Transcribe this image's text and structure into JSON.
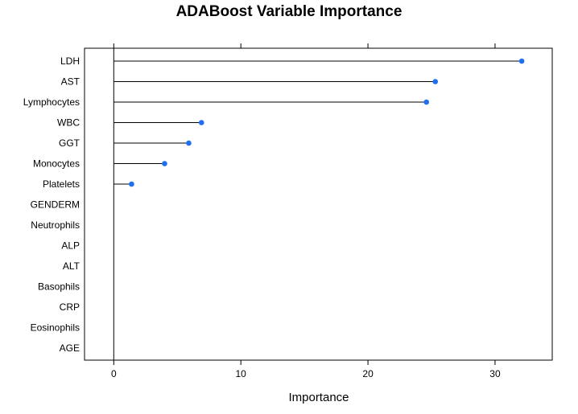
{
  "chart_data": {
    "type": "dot",
    "title": "ADABoost Variable Importance",
    "xlabel": "Importance",
    "ylabel": "",
    "xlim": [
      -2.3,
      34.5
    ],
    "xticks": [
      0,
      10,
      20,
      30
    ],
    "point_color": "#1f6ff2",
    "categories": [
      "LDH",
      "AST",
      "Lymphocytes",
      "WBC",
      "GGT",
      "Monocytes",
      "Platelets",
      "GENDERM",
      "Neutrophils",
      "ALP",
      "ALT",
      "Basophils",
      "CRP",
      "Eosinophils",
      "AGE"
    ],
    "values": [
      32.1,
      25.3,
      24.6,
      6.9,
      5.9,
      4.0,
      1.4,
      0,
      0,
      0,
      0,
      0,
      0,
      0,
      0
    ]
  }
}
